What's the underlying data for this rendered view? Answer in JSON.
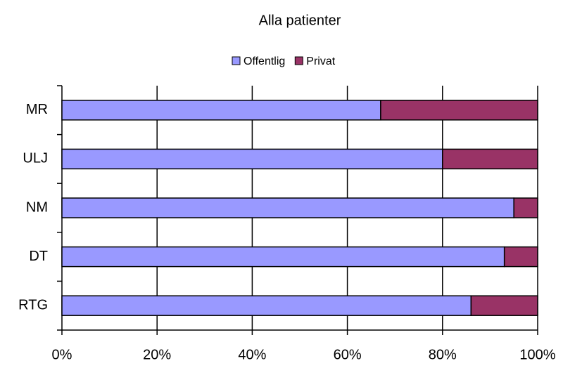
{
  "chart_data": {
    "type": "bar",
    "orientation": "horizontal",
    "stacked": true,
    "title": "Alla patienter",
    "categories": [
      "MR",
      "ULJ",
      "NM",
      "DT",
      "RTG"
    ],
    "series": [
      {
        "name": "Offentlig",
        "color": "#9999ff",
        "values": [
          67,
          80,
          95,
          93,
          86
        ]
      },
      {
        "name": "Privat",
        "color": "#993366",
        "values": [
          33,
          20,
          5,
          7,
          14
        ]
      }
    ],
    "xlim": [
      0,
      100
    ],
    "xticks": [
      {
        "value": 0,
        "label": "0%"
      },
      {
        "value": 20,
        "label": "20%"
      },
      {
        "value": 40,
        "label": "40%"
      },
      {
        "value": 60,
        "label": "60%"
      },
      {
        "value": 80,
        "label": "80%"
      },
      {
        "value": 100,
        "label": "100%"
      }
    ],
    "grid": true,
    "legend": "top"
  }
}
